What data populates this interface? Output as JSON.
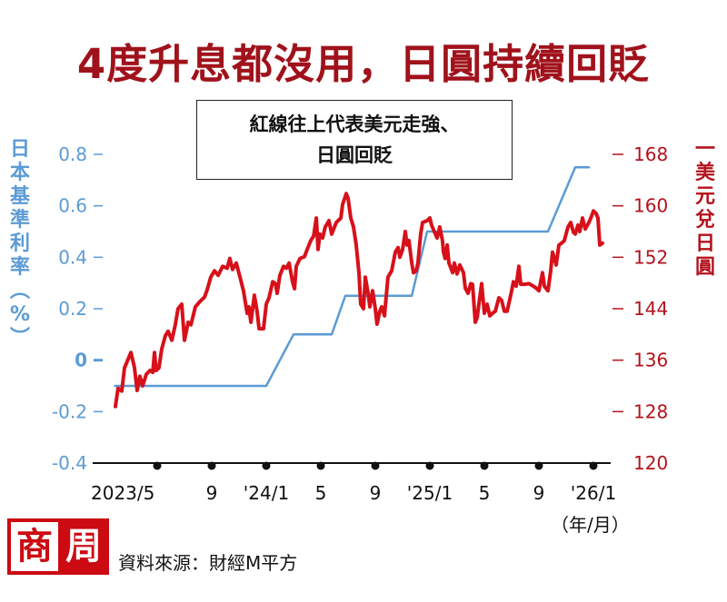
{
  "header": {
    "title": "4度升息都沒用，日圓持續回貶"
  },
  "annotation": {
    "line1": "紅線往上代表美元走強、",
    "line2": "日圓回貶"
  },
  "axes": {
    "left_title_chars": [
      "日",
      "本",
      "基",
      "準",
      "利",
      "率",
      "︵",
      "%",
      "︶"
    ],
    "right_title_chars": [
      "一",
      "美",
      "元",
      "兌",
      "日",
      "圓"
    ],
    "x_unit": "（年/月）"
  },
  "footer": {
    "logo_char1": "商",
    "logo_char2": "周",
    "source": "資料來源：財經M平方"
  },
  "colors": {
    "title": "#a0121b",
    "rate_line": "#5b9bd5",
    "fx_line": "#d7101a",
    "right_axis": "#b3121c",
    "left_axis": "#5b9bd5"
  },
  "chart_data": {
    "type": "line",
    "title": "4度升息都沒用，日圓持續回貶",
    "annotation": "紅線往上代表美元走強、日圓回貶",
    "xlabel": "（年/月）",
    "x_ticks": [
      {
        "label": "2023/5",
        "month_offset": 0
      },
      {
        "label": "9",
        "month_offset": 4
      },
      {
        "label": "'24/1",
        "month_offset": 8
      },
      {
        "label": "5",
        "month_offset": 12
      },
      {
        "label": "9",
        "month_offset": 16
      },
      {
        "label": "'25/1",
        "month_offset": 20
      },
      {
        "label": "5",
        "month_offset": 24
      },
      {
        "label": "9",
        "month_offset": 28
      },
      {
        "label": "'26/1",
        "month_offset": 32
      }
    ],
    "y_left": {
      "label": "日本基準利率（%）",
      "ticks": [
        "0.8",
        "0.6",
        "0.4",
        "0.2",
        "0",
        "-0.2",
        "-0.4"
      ],
      "values": [
        0.8,
        0.6,
        0.4,
        0.2,
        0,
        -0.2,
        -0.4
      ],
      "range": [
        -0.4,
        0.8
      ]
    },
    "y_right": {
      "label": "一美元兌日圓",
      "ticks": [
        "168",
        "160",
        "152",
        "144",
        "136",
        "128",
        "120"
      ],
      "values": [
        168,
        160,
        152,
        144,
        136,
        128,
        120
      ],
      "range": [
        120,
        168
      ]
    },
    "series": [
      {
        "name": "日本基準利率",
        "axis": "left",
        "color": "#5b9bd5",
        "points": [
          [
            -3.1,
            -0.1
          ],
          [
            8.0,
            -0.1
          ],
          [
            10.0,
            0.1
          ],
          [
            12.8,
            0.1
          ],
          [
            13.8,
            0.25
          ],
          [
            18.67,
            0.25
          ],
          [
            19.8,
            0.5
          ],
          [
            28.67,
            0.5
          ],
          [
            30.67,
            0.75
          ],
          [
            31.67,
            0.75
          ]
        ]
      },
      {
        "name": "美元兌日圓",
        "axis": "right",
        "color": "#d7101a",
        "points": [
          [
            -3.07,
            128.8
          ],
          [
            -2.87,
            131.6
          ],
          [
            -2.6,
            131.2
          ],
          [
            -2.4,
            134.8
          ],
          [
            -1.93,
            137.2
          ],
          [
            -1.67,
            134.9
          ],
          [
            -1.47,
            131.3
          ],
          [
            -1.27,
            133.5
          ],
          [
            -1.07,
            132.0
          ],
          [
            -0.8,
            133.8
          ],
          [
            -0.53,
            134.4
          ],
          [
            -0.33,
            134.1
          ],
          [
            -0.2,
            137.2
          ],
          [
            -0.07,
            134.4
          ],
          [
            0.13,
            134.8
          ],
          [
            0.33,
            137.7
          ],
          [
            0.6,
            139.8
          ],
          [
            0.8,
            140.5
          ],
          [
            1.07,
            139.1
          ],
          [
            1.33,
            141.5
          ],
          [
            1.53,
            144.0
          ],
          [
            1.8,
            144.7
          ],
          [
            2.0,
            139.1
          ],
          [
            2.27,
            141.9
          ],
          [
            2.47,
            141.5
          ],
          [
            2.8,
            144.3
          ],
          [
            3.13,
            145.1
          ],
          [
            3.47,
            145.8
          ],
          [
            3.67,
            147.0
          ],
          [
            3.93,
            148.9
          ],
          [
            4.2,
            149.9
          ],
          [
            4.47,
            149.2
          ],
          [
            4.8,
            150.6
          ],
          [
            5.13,
            150.3
          ],
          [
            5.33,
            151.8
          ],
          [
            5.53,
            150.1
          ],
          [
            5.8,
            151.1
          ],
          [
            6.07,
            148.9
          ],
          [
            6.33,
            146.8
          ],
          [
            6.6,
            143.3
          ],
          [
            6.73,
            144.3
          ],
          [
            6.87,
            141.9
          ],
          [
            7.13,
            146.1
          ],
          [
            7.33,
            143.6
          ],
          [
            7.47,
            140.9
          ],
          [
            7.8,
            140.9
          ],
          [
            8.0,
            144.7
          ],
          [
            8.2,
            145.7
          ],
          [
            8.47,
            148.2
          ],
          [
            8.67,
            147.9
          ],
          [
            8.8,
            146.4
          ],
          [
            9.0,
            149.2
          ],
          [
            9.27,
            150.6
          ],
          [
            9.47,
            150.3
          ],
          [
            9.67,
            151.1
          ],
          [
            9.93,
            148.2
          ],
          [
            10.07,
            147.1
          ],
          [
            10.2,
            150.6
          ],
          [
            10.47,
            151.8
          ],
          [
            10.8,
            152.1
          ],
          [
            11.0,
            153.2
          ],
          [
            11.27,
            154.6
          ],
          [
            11.47,
            155.3
          ],
          [
            11.67,
            158.1
          ],
          [
            11.8,
            153.2
          ],
          [
            11.93,
            155.6
          ],
          [
            12.13,
            155.0
          ],
          [
            12.33,
            156.7
          ],
          [
            12.6,
            157.7
          ],
          [
            12.8,
            155.6
          ],
          [
            13.13,
            157.4
          ],
          [
            13.47,
            158.1
          ],
          [
            13.6,
            160.2
          ],
          [
            13.87,
            161.9
          ],
          [
            14.0,
            161.2
          ],
          [
            14.2,
            158.1
          ],
          [
            14.4,
            156.7
          ],
          [
            14.6,
            153.9
          ],
          [
            14.8,
            149.6
          ],
          [
            14.93,
            144.7
          ],
          [
            15.13,
            144.0
          ],
          [
            15.27,
            148.9
          ],
          [
            15.47,
            146.4
          ],
          [
            15.6,
            144.3
          ],
          [
            15.8,
            146.8
          ],
          [
            16.0,
            144.0
          ],
          [
            16.13,
            141.6
          ],
          [
            16.33,
            143.6
          ],
          [
            16.47,
            144.3
          ],
          [
            16.67,
            142.9
          ],
          [
            16.93,
            148.9
          ],
          [
            17.2,
            149.9
          ],
          [
            17.47,
            152.8
          ],
          [
            17.67,
            153.5
          ],
          [
            17.8,
            152.0
          ],
          [
            18.0,
            153.2
          ],
          [
            18.2,
            156.0
          ],
          [
            18.33,
            153.9
          ],
          [
            18.47,
            154.6
          ],
          [
            18.67,
            151.1
          ],
          [
            18.8,
            149.6
          ],
          [
            19.0,
            149.9
          ],
          [
            19.13,
            151.1
          ],
          [
            19.33,
            155.6
          ],
          [
            19.47,
            157.4
          ],
          [
            19.8,
            157.7
          ],
          [
            20.0,
            158.1
          ],
          [
            20.13,
            157.0
          ],
          [
            20.33,
            156.0
          ],
          [
            20.53,
            155.0
          ],
          [
            20.73,
            156.7
          ],
          [
            20.93,
            154.6
          ],
          [
            21.0,
            152.8
          ],
          [
            21.13,
            151.8
          ],
          [
            21.27,
            153.9
          ],
          [
            21.4,
            151.1
          ],
          [
            21.53,
            150.4
          ],
          [
            21.67,
            149.6
          ],
          [
            21.8,
            151.1
          ],
          [
            22.0,
            149.4
          ],
          [
            22.2,
            150.8
          ],
          [
            22.47,
            149.6
          ],
          [
            22.6,
            147.2
          ],
          [
            22.8,
            146.4
          ],
          [
            23.0,
            147.9
          ],
          [
            23.13,
            147.8
          ],
          [
            23.33,
            141.9
          ],
          [
            23.47,
            142.6
          ],
          [
            23.8,
            147.9
          ],
          [
            24.0,
            143.3
          ],
          [
            24.2,
            144.7
          ],
          [
            24.4,
            142.9
          ],
          [
            24.6,
            143.3
          ],
          [
            24.8,
            143.6
          ],
          [
            25.07,
            145.7
          ],
          [
            25.27,
            145.3
          ],
          [
            25.47,
            143.6
          ],
          [
            25.67,
            143.6
          ],
          [
            25.93,
            146.1
          ],
          [
            26.13,
            148.2
          ],
          [
            26.33,
            147.5
          ],
          [
            26.53,
            150.6
          ],
          [
            26.67,
            147.8
          ],
          [
            26.93,
            147.8
          ],
          [
            27.27,
            147.9
          ],
          [
            27.6,
            147.5
          ],
          [
            27.8,
            147.2
          ],
          [
            28.0,
            146.8
          ],
          [
            28.13,
            148.2
          ],
          [
            28.27,
            149.6
          ],
          [
            28.4,
            147.5
          ],
          [
            28.67,
            146.8
          ],
          [
            28.87,
            149.9
          ],
          [
            29.0,
            152.8
          ],
          [
            29.27,
            150.8
          ],
          [
            29.47,
            153.9
          ],
          [
            29.67,
            154.2
          ],
          [
            29.87,
            154.6
          ],
          [
            30.13,
            156.7
          ],
          [
            30.33,
            157.4
          ],
          [
            30.53,
            155.9
          ],
          [
            30.67,
            155.6
          ],
          [
            30.87,
            157.0
          ],
          [
            31.0,
            156.0
          ],
          [
            31.2,
            158.1
          ],
          [
            31.4,
            156.4
          ],
          [
            31.67,
            157.4
          ],
          [
            31.87,
            158.4
          ],
          [
            32.0,
            159.2
          ],
          [
            32.2,
            158.8
          ],
          [
            32.33,
            158.1
          ],
          [
            32.47,
            153.9
          ],
          [
            32.67,
            154.2
          ]
        ]
      }
    ]
  }
}
